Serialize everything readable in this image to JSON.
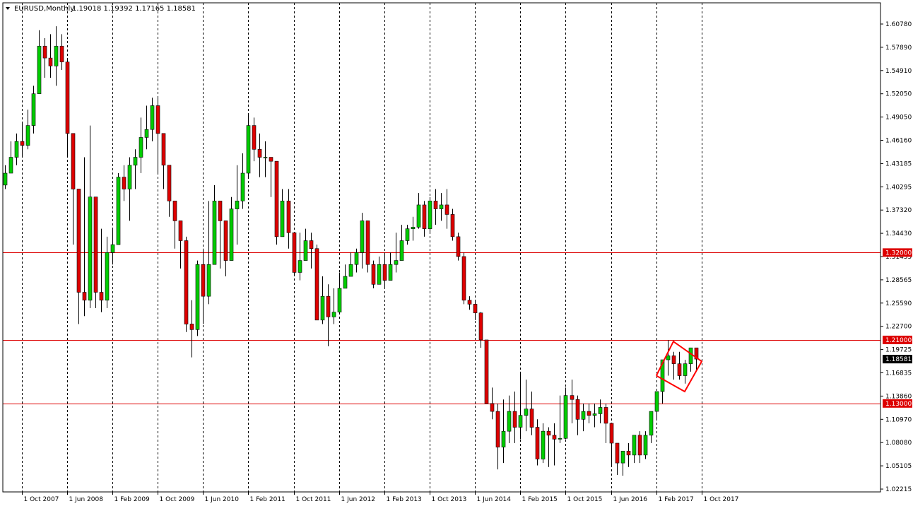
{
  "header": {
    "symbol": "EURUSD,Monthly",
    "ohlc": "1.19018 1.19392 1.17165 1.18581"
  },
  "colors": {
    "background": "#ffffff",
    "frame": "#000000",
    "grid": "#000000",
    "bull_body": "#00cc00",
    "bear_body": "#dd0000",
    "wick": "#000000",
    "support_line": "#dd0000",
    "current_price_bg": "#000000",
    "current_price_fg": "#ffffff",
    "level_label_bg": "#dd0000",
    "level_label_fg": "#ffffff",
    "pattern": "#ff0000"
  },
  "chart_data": {
    "type": "candlestick",
    "title": "",
    "xlabel": "",
    "ylabel": "",
    "ylim": [
      1.0221,
      1.6221
    ],
    "grid": "vertical-dotted",
    "price_ticks": [
      "1.60780",
      "1.57890",
      "1.54910",
      "1.52050",
      "1.49050",
      "1.46160",
      "1.43185",
      "1.40295",
      "1.37320",
      "1.34430",
      "1.31455",
      "1.28565",
      "1.25590",
      "1.22700",
      "1.19725",
      "1.16835",
      "1.13860",
      "1.10970",
      "1.08080",
      "1.05105",
      "1.02215"
    ],
    "time_ticks": [
      "1 Oct 2007",
      "1 Jun 2008",
      "1 Feb 2009",
      "1 Oct 2009",
      "1 Jun 2010",
      "1 Feb 2011",
      "1 Oct 2011",
      "1 Jun 2012",
      "1 Feb 2013",
      "1 Oct 2013",
      "1 Jun 2014",
      "1 Feb 2015",
      "1 Oct 2015",
      "1 Jun 2016",
      "1 Feb 2017",
      "1 Oct 2017"
    ],
    "time_tick_month_index": [
      3,
      11,
      19,
      27,
      35,
      43,
      51,
      59,
      67,
      75,
      83,
      91,
      99,
      107,
      115,
      123
    ],
    "first_month": "2007-07",
    "current_price": "1.18581",
    "horizontal_levels": [
      "1.32000",
      "1.21000",
      "1.13000"
    ],
    "close": [
      1.42,
      1.44,
      1.46,
      1.455,
      1.48,
      1.52,
      1.58,
      1.565,
      1.555,
      1.58,
      1.56,
      1.47,
      1.4,
      1.27,
      1.26,
      1.39,
      1.27,
      1.26,
      1.32,
      1.33,
      1.415,
      1.4,
      1.43,
      1.44,
      1.465,
      1.475,
      1.505,
      1.47,
      1.43,
      1.385,
      1.36,
      1.335,
      1.23,
      1.223,
      1.305,
      1.265,
      1.305,
      1.385,
      1.36,
      1.31,
      1.375,
      1.385,
      1.42,
      1.48,
      1.45,
      1.44,
      1.44,
      1.435,
      1.34,
      1.385,
      1.345,
      1.295,
      1.31,
      1.335,
      1.325,
      1.235,
      1.265,
      1.239,
      1.245,
      1.275,
      1.29,
      1.305,
      1.32,
      1.36,
      1.305,
      1.28,
      1.305,
      1.285,
      1.305,
      1.31,
      1.335,
      1.35,
      1.352,
      1.38,
      1.35,
      1.385,
      1.375,
      1.38,
      1.368,
      1.34,
      1.315,
      1.26,
      1.255,
      1.244,
      1.21,
      1.13,
      1.12,
      1.075,
      1.095,
      1.12,
      1.1,
      1.115,
      1.123,
      1.1,
      1.06,
      1.095,
      1.09,
      1.085,
      1.086,
      1.14,
      1.135,
      1.11,
      1.12,
      1.115,
      1.117,
      1.125,
      1.105,
      1.08,
      1.055,
      1.07,
      1.065,
      1.09,
      1.065,
      1.09,
      1.12,
      1.145,
      1.185,
      1.19,
      1.18,
      1.165,
      1.18,
      1.2,
      1.1858
    ],
    "range": [
      [
        1.4,
        1.43
      ],
      [
        1.42,
        1.46
      ],
      [
        1.43,
        1.47
      ],
      [
        1.44,
        1.485
      ],
      [
        1.45,
        1.5
      ],
      [
        1.47,
        1.53
      ],
      [
        1.52,
        1.6
      ],
      [
        1.54,
        1.59
      ],
      [
        1.54,
        1.595
      ],
      [
        1.53,
        1.605
      ],
      [
        1.55,
        1.595
      ],
      [
        1.44,
        1.565
      ],
      [
        1.33,
        1.465
      ],
      [
        1.23,
        1.4
      ],
      [
        1.24,
        1.44
      ],
      [
        1.25,
        1.48
      ],
      [
        1.25,
        1.39
      ],
      [
        1.245,
        1.35
      ],
      [
        1.25,
        1.34
      ],
      [
        1.305,
        1.35
      ],
      [
        1.33,
        1.42
      ],
      [
        1.385,
        1.43
      ],
      [
        1.36,
        1.44
      ],
      [
        1.4,
        1.45
      ],
      [
        1.42,
        1.49
      ],
      [
        1.45,
        1.505
      ],
      [
        1.46,
        1.515
      ],
      [
        1.42,
        1.515
      ],
      [
        1.4,
        1.47
      ],
      [
        1.365,
        1.395
      ],
      [
        1.325,
        1.38
      ],
      [
        1.3,
        1.35
      ],
      [
        1.22,
        1.34
      ],
      [
        1.188,
        1.26
      ],
      [
        1.215,
        1.31
      ],
      [
        1.23,
        1.325
      ],
      [
        1.255,
        1.385
      ],
      [
        1.325,
        1.405
      ],
      [
        1.3,
        1.385
      ],
      [
        1.29,
        1.35
      ],
      [
        1.315,
        1.39
      ],
      [
        1.33,
        1.43
      ],
      [
        1.375,
        1.445
      ],
      [
        1.415,
        1.495
      ],
      [
        1.435,
        1.49
      ],
      [
        1.415,
        1.47
      ],
      [
        1.415,
        1.46
      ],
      [
        1.39,
        1.44
      ],
      [
        1.33,
        1.41
      ],
      [
        1.345,
        1.4
      ],
      [
        1.325,
        1.4
      ],
      [
        1.29,
        1.345
      ],
      [
        1.285,
        1.345
      ],
      [
        1.31,
        1.35
      ],
      [
        1.3,
        1.345
      ],
      [
        1.235,
        1.33
      ],
      [
        1.23,
        1.29
      ],
      [
        1.202,
        1.28
      ],
      [
        1.23,
        1.275
      ],
      [
        1.245,
        1.295
      ],
      [
        1.285,
        1.305
      ],
      [
        1.29,
        1.32
      ],
      [
        1.295,
        1.325
      ],
      [
        1.3,
        1.37
      ],
      [
        1.295,
        1.345
      ],
      [
        1.275,
        1.31
      ],
      [
        1.28,
        1.315
      ],
      [
        1.275,
        1.32
      ],
      [
        1.285,
        1.32
      ],
      [
        1.295,
        1.345
      ],
      [
        1.31,
        1.355
      ],
      [
        1.33,
        1.355
      ],
      [
        1.335,
        1.365
      ],
      [
        1.35,
        1.395
      ],
      [
        1.34,
        1.385
      ],
      [
        1.345,
        1.39
      ],
      [
        1.355,
        1.4
      ],
      [
        1.36,
        1.395
      ],
      [
        1.35,
        1.4
      ],
      [
        1.335,
        1.375
      ],
      [
        1.31,
        1.345
      ],
      [
        1.255,
        1.32
      ],
      [
        1.248,
        1.265
      ],
      [
        1.235,
        1.26
      ],
      [
        1.2,
        1.245
      ],
      [
        1.13,
        1.21
      ],
      [
        1.11,
        1.15
      ],
      [
        1.047,
        1.13
      ],
      [
        1.055,
        1.135
      ],
      [
        1.08,
        1.14
      ],
      [
        1.08,
        1.145
      ],
      [
        1.085,
        1.17
      ],
      [
        1.095,
        1.16
      ],
      [
        1.09,
        1.145
      ],
      [
        1.052,
        1.11
      ],
      [
        1.055,
        1.105
      ],
      [
        1.05,
        1.1
      ],
      [
        1.052,
        1.105
      ],
      [
        1.08,
        1.14
      ],
      [
        1.085,
        1.15
      ],
      [
        1.105,
        1.16
      ],
      [
        1.09,
        1.14
      ],
      [
        1.095,
        1.13
      ],
      [
        1.105,
        1.13
      ],
      [
        1.1,
        1.13
      ],
      [
        1.105,
        1.135
      ],
      [
        1.08,
        1.13
      ],
      [
        1.052,
        1.095
      ],
      [
        1.04,
        1.075
      ],
      [
        1.039,
        1.07
      ],
      [
        1.05,
        1.08
      ],
      [
        1.055,
        1.09
      ],
      [
        1.055,
        1.095
      ],
      [
        1.06,
        1.095
      ],
      [
        1.08,
        1.12
      ],
      [
        1.11,
        1.135
      ],
      [
        1.13,
        1.185
      ],
      [
        1.165,
        1.21
      ],
      [
        1.16,
        1.195
      ],
      [
        1.16,
        1.195
      ],
      [
        1.155,
        1.185
      ],
      [
        1.17,
        1.195
      ],
      [
        1.172,
        1.194
      ]
    ]
  },
  "pattern": {
    "name": "red-rectangle-annotation",
    "points": [
      [
        115,
        1.165
      ],
      [
        118,
        1.208
      ],
      [
        123,
        1.183
      ],
      [
        120,
        1.145
      ],
      [
        115,
        1.165
      ]
    ]
  }
}
